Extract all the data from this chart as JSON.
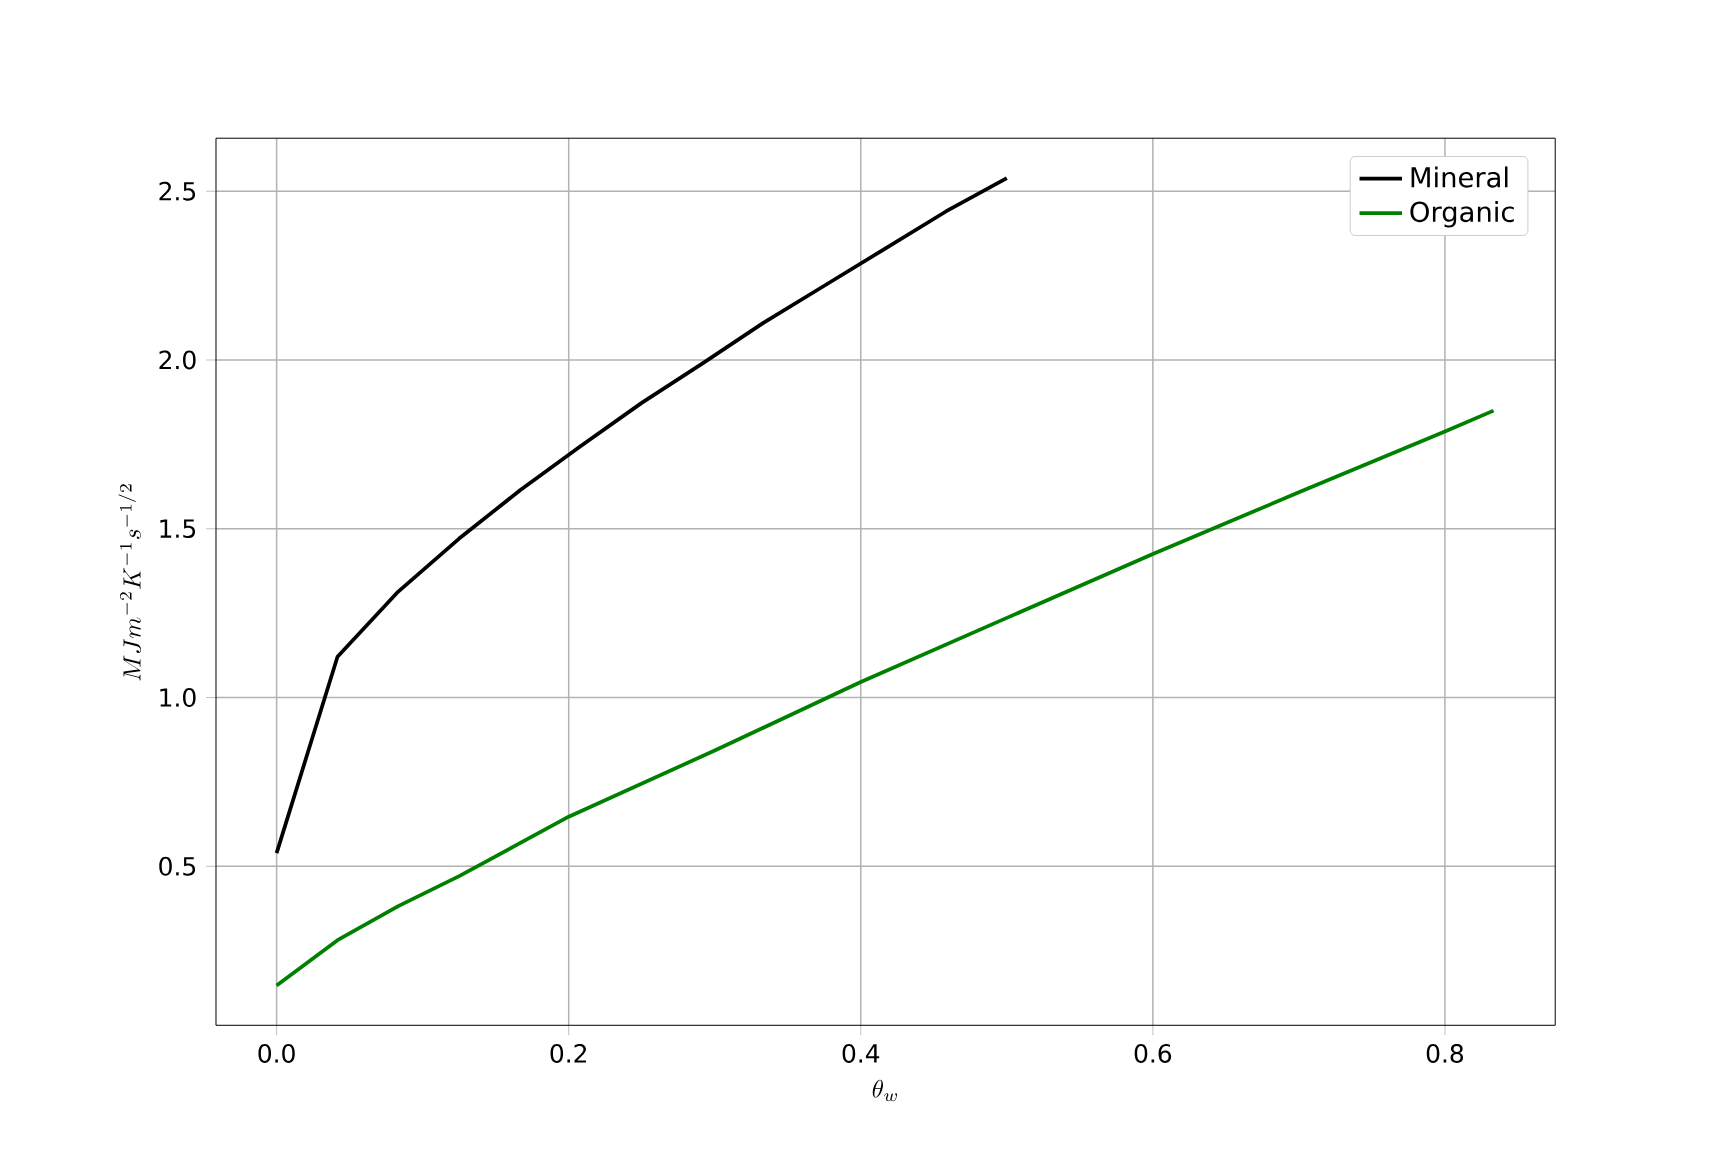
{
  "chart_data": {
    "type": "line",
    "xlabel": "\\theta_w",
    "ylabel": "MJm^{-2}K^{-1}s^{-1/2}",
    "xlim": [
      -0.0415,
      0.8755
    ],
    "ylim": [
      0.029,
      2.657
    ],
    "xticks": [
      {
        "value": 0.0,
        "label": "0.0"
      },
      0.2,
      0.4,
      0.6,
      0.8
    ],
    "yticks": [
      0.5,
      {
        "value": 1.0,
        "label": "1.0"
      },
      1.5,
      {
        "value": 2.0,
        "label": "2.0"
      },
      2.5
    ],
    "grid": true,
    "legend": "top right",
    "line_style": "solid",
    "series": [
      {
        "name": "Mineral",
        "color": "#000000",
        "x": [
          0,
          0.0417,
          0.0833,
          0.125,
          0.1667,
          0.2083,
          0.25,
          0.2917,
          0.3333,
          0.375,
          0.4167,
          0.4583,
          0.5
        ],
        "values": [
          0.539,
          1.121,
          1.314,
          1.471,
          1.614,
          1.745,
          1.873,
          1.99,
          2.11,
          2.22,
          2.33,
          2.44,
          2.539
        ]
      },
      {
        "name": "Organic",
        "color": "#008000",
        "x": [
          0,
          0.0417,
          0.0833,
          0.125,
          0.2,
          0.3,
          0.4,
          0.5,
          0.6,
          0.7,
          0.8,
          0.8333
        ],
        "values": [
          0.147,
          0.281,
          0.382,
          0.471,
          0.647,
          0.843,
          1.046,
          1.236,
          1.425,
          1.608,
          1.788,
          1.85
        ]
      }
    ]
  }
}
